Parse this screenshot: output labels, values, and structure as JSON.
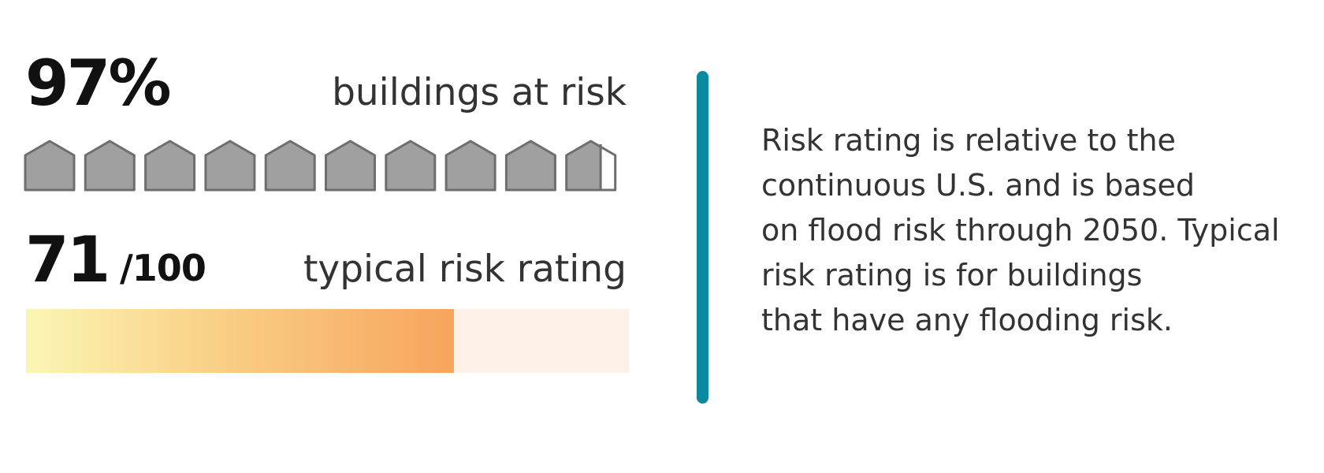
{
  "stats": {
    "buildings_pct": "97%",
    "buildings_caption": "buildings at risk",
    "buildings_fraction": 0.97,
    "house_count": 10,
    "rating_value": "71",
    "rating_suffix": "/100",
    "rating_caption": "typical risk rating",
    "rating_fraction": 0.71
  },
  "icons": {
    "house": "house-icon"
  },
  "colors": {
    "house_fill": "#a0a0a0",
    "house_stroke": "#6e6e6e",
    "house_empty": "#ffffff",
    "bar_start": "#fbf6b4",
    "bar_end": "#f8a45c",
    "bar_track": "#fdf1e7",
    "divider": "#0b899f"
  },
  "note": {
    "lines": [
      "Risk rating is relative to the",
      "continuous U.S. and is based",
      "on flood risk through 2050. Typical",
      "risk rating is for buildings",
      "that have any flooding risk."
    ]
  }
}
